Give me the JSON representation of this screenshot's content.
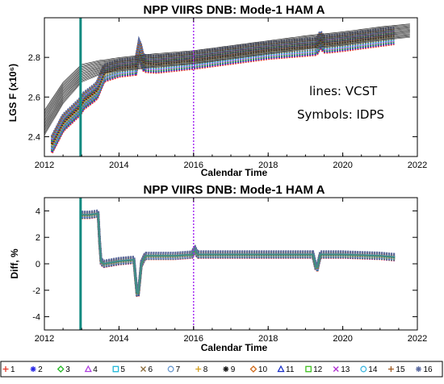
{
  "chart_data": [
    {
      "type": "line",
      "title": "NPP VIIRS DNB:  Mode-1  HAM A",
      "xlabel": "Calendar Time",
      "ylabel": "LGS F (x10⁶)",
      "xlim": [
        2012,
        2022
      ],
      "ylim": [
        2.3,
        3.0
      ],
      "xticks": [
        "2012",
        "2014",
        "2016",
        "2018",
        "2020",
        "2022"
      ],
      "yticks": [
        "2.4",
        "2.6",
        "2.8"
      ],
      "annotations": [
        "lines: VCST",
        "Symbols: IDPS"
      ],
      "vertical_markers": [
        {
          "x": 2012.97,
          "style": "solid",
          "color": "#108a80"
        },
        {
          "x": 2016.0,
          "style": "dotted",
          "color": "#a020f0"
        }
      ],
      "detectors": 16,
      "series": [
        {
          "name": "lines: VCST",
          "x": [
            2012.0,
            2012.5,
            2013.0,
            2013.5,
            2014.0,
            2014.5,
            2015.0,
            2016.0,
            2017.0,
            2018.0,
            2019.0,
            2020.0,
            2021.0,
            2021.8
          ],
          "values": [
            2.47,
            2.62,
            2.72,
            2.75,
            2.765,
            2.775,
            2.785,
            2.8,
            2.825,
            2.85,
            2.875,
            2.895,
            2.92,
            2.935
          ]
        },
        {
          "name": "Symbols: IDPS",
          "x": [
            2012.2,
            2012.5,
            2012.95,
            2013.05,
            2013.4,
            2013.6,
            2014.0,
            2014.45,
            2014.55,
            2014.65,
            2015.0,
            2016.0,
            2017.0,
            2018.0,
            2019.3,
            2019.4,
            2019.5,
            2020.0,
            2021.0,
            2021.4
          ],
          "values": [
            2.36,
            2.47,
            2.55,
            2.58,
            2.63,
            2.72,
            2.745,
            2.755,
            2.855,
            2.77,
            2.765,
            2.785,
            2.81,
            2.835,
            2.855,
            2.89,
            2.865,
            2.875,
            2.9,
            2.91
          ]
        }
      ]
    },
    {
      "type": "line",
      "title": "NPP VIIRS DNB:  Mode-1  HAM A",
      "xlabel": "Calendar Time",
      "ylabel": "Diff, %",
      "xlim": [
        2012,
        2022
      ],
      "ylim": [
        -5,
        5
      ],
      "xticks": [
        "2012",
        "2014",
        "2016",
        "2018",
        "2020",
        "2022"
      ],
      "yticks": [
        "-4",
        "-2",
        "0",
        "2",
        "4"
      ],
      "vertical_markers": [
        {
          "x": 2012.97,
          "style": "solid",
          "color": "#108a80"
        },
        {
          "x": 2016.0,
          "style": "dotted",
          "color": "#a020f0"
        }
      ],
      "series": [
        {
          "name": "Diff",
          "x": [
            2013.0,
            2013.2,
            2013.45,
            2013.5,
            2013.6,
            2014.0,
            2014.4,
            2014.5,
            2014.6,
            2014.7,
            2015.0,
            2015.5,
            2015.98,
            2016.02,
            2016.1,
            2017.0,
            2018.0,
            2019.2,
            2019.3,
            2019.4,
            2019.5,
            2020.0,
            2021.0,
            2021.4
          ],
          "values": [
            3.7,
            3.7,
            3.8,
            0.2,
            0.0,
            0.2,
            0.3,
            -2.8,
            0.0,
            0.6,
            0.6,
            0.6,
            0.7,
            1.2,
            0.7,
            0.7,
            0.7,
            0.7,
            -0.5,
            0.7,
            0.7,
            0.7,
            0.6,
            0.5
          ]
        }
      ]
    }
  ],
  "legend": {
    "placement": "bottom",
    "items": [
      {
        "label": "1",
        "marker": "+",
        "color": "#e63a2a"
      },
      {
        "label": "2",
        "marker": "asterisk",
        "color": "#2a2ae6"
      },
      {
        "label": "3",
        "marker": "diamond",
        "color": "#22b822"
      },
      {
        "label": "4",
        "marker": "triangle",
        "color": "#b040e0"
      },
      {
        "label": "5",
        "marker": "square",
        "color": "#20b8d8"
      },
      {
        "label": "6",
        "marker": "x",
        "color": "#8a6a3a"
      },
      {
        "label": "7",
        "marker": "circle",
        "color": "#6a9ad0"
      },
      {
        "label": "8",
        "marker": "+",
        "color": "#d4a020"
      },
      {
        "label": "9",
        "marker": "asterisk",
        "color": "#1a1a1a"
      },
      {
        "label": "10",
        "marker": "diamond",
        "color": "#d06a1a"
      },
      {
        "label": "11",
        "marker": "triangle",
        "color": "#1a30c8"
      },
      {
        "label": "12",
        "marker": "square",
        "color": "#40c020"
      },
      {
        "label": "13",
        "marker": "x",
        "color": "#b030d0"
      },
      {
        "label": "14",
        "marker": "circle",
        "color": "#40b8e0"
      },
      {
        "label": "15",
        "marker": "+",
        "color": "#a05a20"
      },
      {
        "label": "16",
        "marker": "asterisk",
        "color": "#5a6aa0"
      }
    ]
  }
}
